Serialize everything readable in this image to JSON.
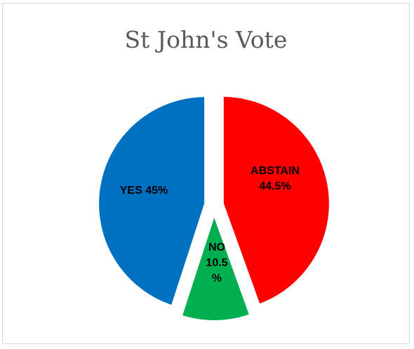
{
  "chart_data": {
    "type": "pie",
    "title": "St John's Vote",
    "slices": [
      {
        "label": "ABSTAIN",
        "value": 44.5,
        "display": "ABSTAIN 44.5%",
        "color": "#ff0000"
      },
      {
        "label": "NO",
        "value": 10.5,
        "display": "NO 10.5 %",
        "color": "#00b050"
      },
      {
        "label": "YES",
        "value": 45,
        "display": "YES 45%",
        "color": "#0070c0"
      }
    ],
    "label_lines": [
      [
        "ABSTAIN",
        "44.5%"
      ],
      [
        "NO",
        "10.5",
        "%"
      ],
      [
        "YES 45%"
      ]
    ],
    "exploded": true,
    "legend": "none"
  }
}
